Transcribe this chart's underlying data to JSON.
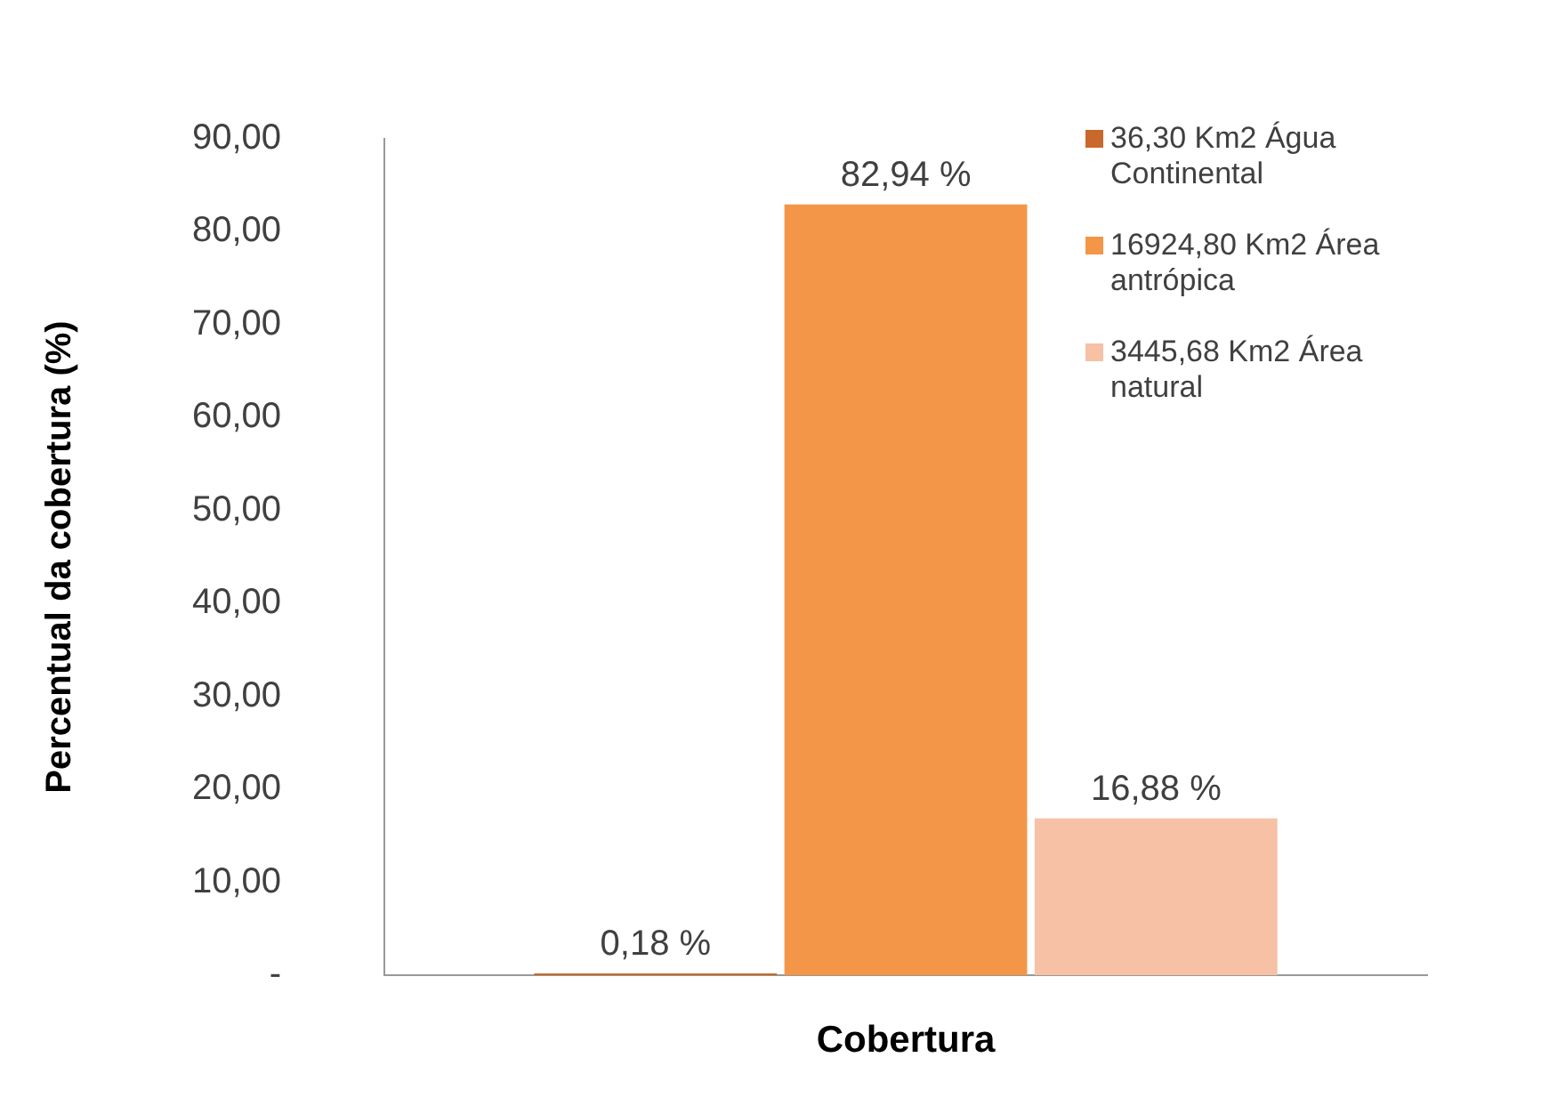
{
  "chart_data": {
    "type": "bar",
    "xlabel": "Cobertura",
    "ylabel": "Percentual da cobertura (%)",
    "categories": [
      null
    ],
    "series": [
      {
        "name": "36,30 Km2 Água Continental",
        "color": "#c8682a",
        "values": [
          0.18
        ],
        "value_labels": [
          "0,18 %"
        ]
      },
      {
        "name": "16924,80 Km2 Área antrópica",
        "color": "#f39647",
        "values": [
          82.94
        ],
        "value_labels": [
          "82,94 %"
        ]
      },
      {
        "name": "3445,68 Km2 Área natural",
        "color": "#f7c1a5",
        "values": [
          16.88
        ],
        "value_labels": [
          "16,88 %"
        ]
      }
    ],
    "ylim": [
      0,
      90
    ],
    "yticks": [
      {
        "value": 0,
        "label": "-"
      },
      {
        "value": 10,
        "label": "10,00"
      },
      {
        "value": 20,
        "label": "20,00"
      },
      {
        "value": 30,
        "label": "30,00"
      },
      {
        "value": 40,
        "label": "40,00"
      },
      {
        "value": 50,
        "label": "50,00"
      },
      {
        "value": 60,
        "label": "60,00"
      },
      {
        "value": 70,
        "label": "70,00"
      },
      {
        "value": 80,
        "label": "80,00"
      },
      {
        "value": 90,
        "label": "90,00"
      }
    ],
    "grid": false,
    "legend": "top right"
  }
}
